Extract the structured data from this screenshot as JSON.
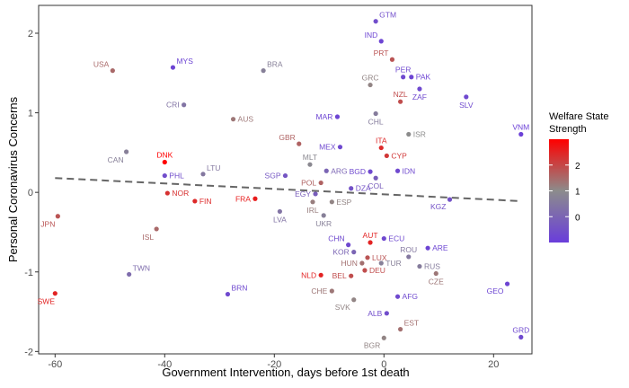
{
  "chart_data": {
    "type": "scatter",
    "xlabel": "Government Intervention, days before 1st death",
    "ylabel": "Personal Coronavirus Concerns",
    "xlim": [
      -63,
      27
    ],
    "ylim": [
      -2.03,
      2.35
    ],
    "x_ticks": [
      -60,
      -40,
      -20,
      0,
      20
    ],
    "y_ticks": [
      -2,
      -1,
      0,
      1,
      2
    ],
    "grid": false,
    "colors": {
      "low": "#6a3ddb",
      "mid": "#8c8c8c",
      "high": "#ff0000"
    },
    "color_range": [
      -1.0,
      3.0
    ],
    "legend": {
      "title_line1": "Welfare State",
      "title_line2": "Strength",
      "ticks": [
        2,
        1,
        0
      ],
      "position": "right"
    },
    "trend": {
      "x": [
        -60,
        25
      ],
      "y": [
        0.18,
        -0.11
      ]
    },
    "points": [
      {
        "label": "GTM",
        "x": -1.5,
        "y": 2.15,
        "c": -0.6
      },
      {
        "label": "IND",
        "x": -0.5,
        "y": 1.9,
        "c": -0.8
      },
      {
        "label": "PRT",
        "x": 1.5,
        "y": 1.67,
        "c": 1.8
      },
      {
        "label": "USA",
        "x": -49.5,
        "y": 1.53,
        "c": 1.5
      },
      {
        "label": "MYS",
        "x": -38.5,
        "y": 1.57,
        "c": -0.8
      },
      {
        "label": "BRA",
        "x": -22,
        "y": 1.53,
        "c": 0.7
      },
      {
        "label": "PER",
        "x": 3.5,
        "y": 1.45,
        "c": -0.7
      },
      {
        "label": "GRC",
        "x": -2.5,
        "y": 1.35,
        "c": 1.1
      },
      {
        "label": "PAK",
        "x": 5,
        "y": 1.45,
        "c": -0.8
      },
      {
        "label": "ZAF",
        "x": 6.5,
        "y": 1.3,
        "c": -0.7
      },
      {
        "label": "SLV",
        "x": 15,
        "y": 1.2,
        "c": -0.7
      },
      {
        "label": "NZL",
        "x": 3,
        "y": 1.14,
        "c": 1.9
      },
      {
        "label": "CRI",
        "x": -36.5,
        "y": 1.1,
        "c": 0.4
      },
      {
        "label": "AUS",
        "x": -27.5,
        "y": 0.92,
        "c": 1.3
      },
      {
        "label": "MAR",
        "x": -8.5,
        "y": 0.95,
        "c": -0.8
      },
      {
        "label": "CHL",
        "x": -1.5,
        "y": 0.99,
        "c": 0.6
      },
      {
        "label": "ISR",
        "x": 4.5,
        "y": 0.73,
        "c": 1.0
      },
      {
        "label": "VNM",
        "x": 25,
        "y": 0.73,
        "c": -0.9
      },
      {
        "label": "GBR",
        "x": -15.5,
        "y": 0.61,
        "c": 1.6
      },
      {
        "label": "MEX",
        "x": -8,
        "y": 0.57,
        "c": -0.7
      },
      {
        "label": "ITA",
        "x": -0.5,
        "y": 0.56,
        "c": 2.4
      },
      {
        "label": "CAN",
        "x": -47,
        "y": 0.51,
        "c": 0.7
      },
      {
        "label": "DNK",
        "x": -40,
        "y": 0.38,
        "c": 3.0
      },
      {
        "label": "MLT",
        "x": -13.5,
        "y": 0.35,
        "c": 0.9
      },
      {
        "label": "CYP",
        "x": 0.5,
        "y": 0.46,
        "c": 2.2
      },
      {
        "label": "LTU",
        "x": -33,
        "y": 0.23,
        "c": 0.5
      },
      {
        "label": "ARG",
        "x": -10.5,
        "y": 0.27,
        "c": 0.0
      },
      {
        "label": "BGD",
        "x": -2.5,
        "y": 0.26,
        "c": -0.7
      },
      {
        "label": "IDN",
        "x": 2.5,
        "y": 0.27,
        "c": -0.7
      },
      {
        "label": "SGP",
        "x": -18,
        "y": 0.21,
        "c": -0.4
      },
      {
        "label": "PHL",
        "x": -40,
        "y": 0.21,
        "c": -0.6
      },
      {
        "label": "COL",
        "x": -1.5,
        "y": 0.18,
        "c": -0.2
      },
      {
        "label": "POL",
        "x": -11.5,
        "y": 0.12,
        "c": 1.6
      },
      {
        "label": "DZA",
        "x": -6,
        "y": 0.05,
        "c": -0.5
      },
      {
        "label": "NOR",
        "x": -39.5,
        "y": -0.01,
        "c": 2.3
      },
      {
        "label": "EGY",
        "x": -12.5,
        "y": -0.02,
        "c": -0.2
      },
      {
        "label": "FRA",
        "x": -23.5,
        "y": -0.08,
        "c": 2.6
      },
      {
        "label": "FIN",
        "x": -34.5,
        "y": -0.11,
        "c": 2.4
      },
      {
        "label": "IRL",
        "x": -13,
        "y": -0.12,
        "c": 1.2
      },
      {
        "label": "ESP",
        "x": -9.5,
        "y": -0.12,
        "c": 1.1
      },
      {
        "label": "KGZ",
        "x": 12,
        "y": -0.09,
        "c": -0.5
      },
      {
        "label": "LVA",
        "x": -19,
        "y": -0.24,
        "c": 0.4
      },
      {
        "label": "UKR",
        "x": -11,
        "y": -0.29,
        "c": 0.7
      },
      {
        "label": "JPN",
        "x": -59.5,
        "y": -0.3,
        "c": 1.8
      },
      {
        "label": "ISL",
        "x": -41.5,
        "y": -0.46,
        "c": 1.5
      },
      {
        "label": "ECU",
        "x": 0,
        "y": -0.58,
        "c": -0.7
      },
      {
        "label": "CHN",
        "x": -6.5,
        "y": -0.66,
        "c": -0.7
      },
      {
        "label": "AUT",
        "x": -2.5,
        "y": -0.63,
        "c": 2.5
      },
      {
        "label": "ARE",
        "x": 8,
        "y": -0.7,
        "c": -0.8
      },
      {
        "label": "KOR",
        "x": -5.5,
        "y": -0.75,
        "c": 0.0
      },
      {
        "label": "ROU",
        "x": 4.5,
        "y": -0.81,
        "c": 0.5
      },
      {
        "label": "LUX",
        "x": -3,
        "y": -0.82,
        "c": 1.8
      },
      {
        "label": "HUN",
        "x": -4,
        "y": -0.89,
        "c": 1.4
      },
      {
        "label": "TUR",
        "x": -0.5,
        "y": -0.89,
        "c": 0.7
      },
      {
        "label": "TWN",
        "x": -46.5,
        "y": -1.03,
        "c": 0.2
      },
      {
        "label": "NLD",
        "x": -11.5,
        "y": -1.04,
        "c": 2.5
      },
      {
        "label": "RUS",
        "x": 6.5,
        "y": -0.93,
        "c": 0.6
      },
      {
        "label": "DEU",
        "x": -3.5,
        "y": -0.98,
        "c": 1.9
      },
      {
        "label": "BEL",
        "x": -6,
        "y": -1.05,
        "c": 1.9
      },
      {
        "label": "CZE",
        "x": 9.5,
        "y": -1.02,
        "c": 1.3
      },
      {
        "label": "CHE",
        "x": -9.5,
        "y": -1.24,
        "c": 1.3
      },
      {
        "label": "SWE",
        "x": -60,
        "y": -1.27,
        "c": 2.5
      },
      {
        "label": "BRN",
        "x": -28.5,
        "y": -1.28,
        "c": -0.7
      },
      {
        "label": "GEO",
        "x": 22.5,
        "y": -1.15,
        "c": -0.8
      },
      {
        "label": "AFG",
        "x": 2.5,
        "y": -1.31,
        "c": -0.7
      },
      {
        "label": "SVK",
        "x": -5.5,
        "y": -1.35,
        "c": 1.1
      },
      {
        "label": "ALB",
        "x": 0.5,
        "y": -1.52,
        "c": -0.6
      },
      {
        "label": "EST",
        "x": 3,
        "y": -1.72,
        "c": 1.4
      },
      {
        "label": "GRD",
        "x": 25,
        "y": -1.82,
        "c": -0.7
      },
      {
        "label": "BGR",
        "x": 0,
        "y": -1.83,
        "c": 1.1
      }
    ]
  }
}
